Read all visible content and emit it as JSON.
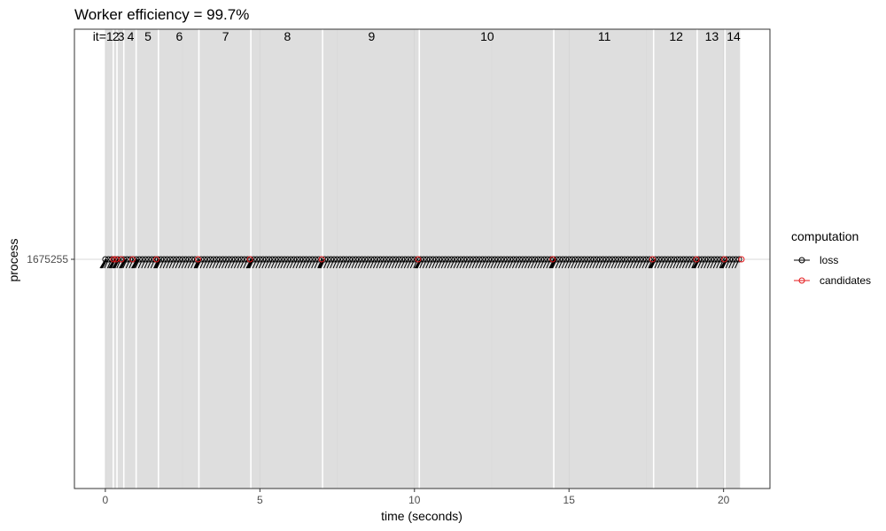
{
  "chart_data": {
    "type": "scatter",
    "title": "Worker efficiency = 99.7%",
    "xlabel": "time (seconds)",
    "ylabel": "process",
    "xlim": [
      -1.0,
      21.5
    ],
    "x_ticks": [
      0,
      5,
      10,
      15,
      20
    ],
    "x_tick_labels": [
      "0",
      "5",
      "10",
      "15",
      "20"
    ],
    "y_categories": [
      "1675255"
    ],
    "grid": true,
    "background": "#ffffff",
    "iteration_band_color": "#dedede",
    "iterations": [
      {
        "label": "1",
        "prefix": "it=",
        "start": 0.0,
        "end": 0.28
      },
      {
        "label": "2",
        "start": 0.28,
        "end": 0.4
      },
      {
        "label": "3",
        "start": 0.4,
        "end": 0.62
      },
      {
        "label": "4",
        "start": 0.62,
        "end": 1.02
      },
      {
        "label": "5",
        "start": 1.02,
        "end": 1.74
      },
      {
        "label": "6",
        "start": 1.74,
        "end": 3.05
      },
      {
        "label": "7",
        "start": 3.05,
        "end": 4.73
      },
      {
        "label": "8",
        "start": 4.73,
        "end": 7.05
      },
      {
        "label": "9",
        "start": 7.05,
        "end": 10.18
      },
      {
        "label": "10",
        "start": 10.18,
        "end": 14.53
      },
      {
        "label": "11",
        "start": 14.53,
        "end": 17.76
      },
      {
        "label": "12",
        "start": 17.76,
        "end": 19.17
      },
      {
        "label": "13",
        "start": 19.17,
        "end": 20.07
      },
      {
        "label": "14",
        "start": 20.07,
        "end": 20.58
      }
    ],
    "legend": {
      "title": "computation",
      "position": "right",
      "entries": [
        {
          "name": "loss",
          "color": "#000000"
        },
        {
          "name": "candidates",
          "color": "#e41a1c"
        }
      ]
    },
    "series": [
      {
        "name": "loss",
        "color": "#000000",
        "interval": 0.1,
        "start": 0.0,
        "end": 20.58
      },
      {
        "name": "candidates",
        "color": "#e41a1c",
        "x": [
          0.26,
          0.35,
          0.52,
          0.88,
          1.65,
          3.0,
          4.68,
          7.0,
          10.12,
          14.47,
          17.7,
          19.12,
          20.02,
          20.58
        ]
      }
    ]
  }
}
